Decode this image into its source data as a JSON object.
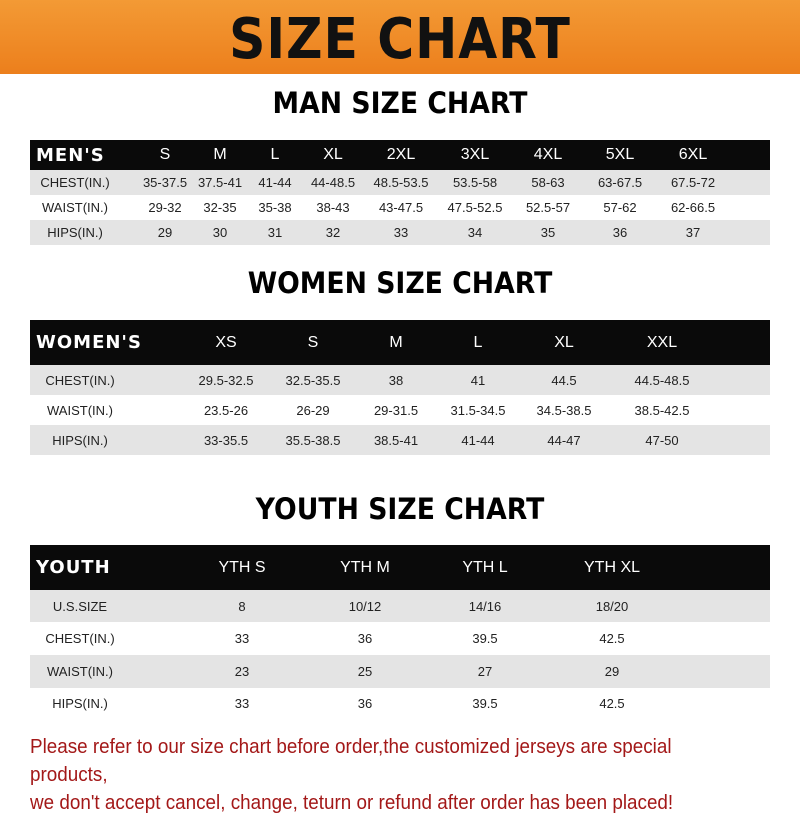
{
  "title": "SIZE CHART",
  "colors": {
    "banner": "#ef8a25",
    "header_row": "#0a0a0a",
    "stripe": "#e4e4e4",
    "notice": "#a31818"
  },
  "men": {
    "heading": "MAN SIZE CHART",
    "headers": [
      "MEN'S",
      "S",
      "M",
      "L",
      "XL",
      "2XL",
      "3XL",
      "4XL",
      "5XL",
      "6XL"
    ],
    "rows": [
      [
        "CHEST(IN.)",
        "35-37.5",
        "37.5-41",
        "41-44",
        "44-48.5",
        "48.5-53.5",
        "53.5-58",
        "58-63",
        "63-67.5",
        "67.5-72"
      ],
      [
        "WAIST(IN.)",
        "29-32",
        "32-35",
        "35-38",
        "38-43",
        "43-47.5",
        "47.5-52.5",
        "52.5-57",
        "57-62",
        "62-66.5"
      ],
      [
        "HIPS(IN.)",
        "29",
        "30",
        "31",
        "32",
        "33",
        "34",
        "35",
        "36",
        "37"
      ]
    ]
  },
  "women": {
    "heading": "WOMEN SIZE CHART",
    "headers": [
      "WOMEN'S",
      "XS",
      "S",
      "M",
      "L",
      "XL",
      "XXL"
    ],
    "rows": [
      [
        "CHEST(IN.)",
        "29.5-32.5",
        "32.5-35.5",
        "38",
        "41",
        "44.5",
        "44.5-48.5"
      ],
      [
        "WAIST(IN.)",
        "23.5-26",
        "26-29",
        "29-31.5",
        "31.5-34.5",
        "34.5-38.5",
        "38.5-42.5"
      ],
      [
        "HIPS(IN.)",
        "33-35.5",
        "35.5-38.5",
        "38.5-41",
        "41-44",
        "44-47",
        "47-50"
      ]
    ]
  },
  "youth": {
    "heading": "YOUTH SIZE CHART",
    "headers": [
      "YOUTH",
      "YTH S",
      "YTH M",
      "YTH L",
      "YTH XL"
    ],
    "rows": [
      [
        "U.S.SIZE",
        "8",
        "10/12",
        "14/16",
        "18/20"
      ],
      [
        "CHEST(IN.)",
        "33",
        "36",
        "39.5",
        "42.5"
      ],
      [
        "WAIST(IN.)",
        "23",
        "25",
        "27",
        "29"
      ],
      [
        "HIPS(IN.)",
        "33",
        "36",
        "39.5",
        "42.5"
      ]
    ]
  },
  "notice": {
    "line1": "Please refer to our size chart before order,the customized jerseys are special products,",
    "line2": "we don't accept cancel, change, teturn or refund after order has been placed!"
  }
}
